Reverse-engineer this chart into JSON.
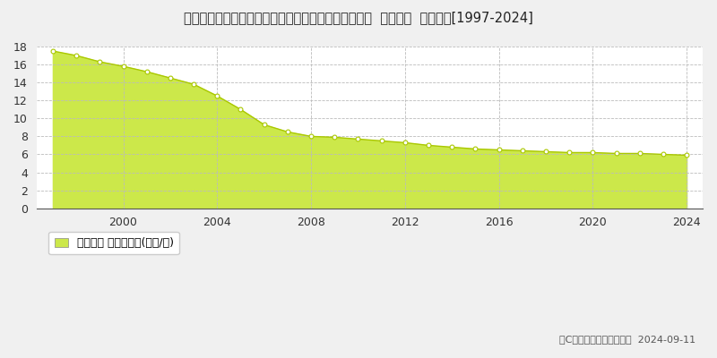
{
  "title": "埼玉県比企郡鸩山町大字大豆戸字七反田上２７９番２  地価公示  地価推移[1997-2024]",
  "years": [
    1997,
    1998,
    1999,
    2000,
    2001,
    2002,
    2003,
    2004,
    2005,
    2006,
    2007,
    2008,
    2009,
    2010,
    2011,
    2012,
    2013,
    2014,
    2015,
    2016,
    2017,
    2018,
    2019,
    2020,
    2021,
    2022,
    2023,
    2024
  ],
  "values": [
    17.5,
    17.0,
    16.3,
    15.8,
    15.2,
    14.5,
    13.8,
    12.5,
    11.0,
    9.3,
    8.5,
    8.0,
    7.9,
    7.7,
    7.5,
    7.3,
    7.0,
    6.8,
    6.6,
    6.5,
    6.4,
    6.3,
    6.2,
    6.2,
    6.1,
    6.1,
    6.0,
    5.9
  ],
  "fill_color": "#cce84a",
  "line_color": "#aac800",
  "marker_color": "#ffffff",
  "marker_edge_color": "#aac800",
  "bg_color": "#f0f0f0",
  "plot_bg_color": "#ffffff",
  "grid_color": "#bbbbbb",
  "ylim": [
    0,
    18
  ],
  "yticks": [
    0,
    2,
    4,
    6,
    8,
    10,
    12,
    14,
    16,
    18
  ],
  "xticks": [
    2000,
    2004,
    2008,
    2012,
    2016,
    2020,
    2024
  ],
  "legend_label": "地価公示 平均坊単価(万円/坊)",
  "legend_marker_color": "#cce84a",
  "copyright_text": "（C）土地価格ドットコム  2024-09-11",
  "title_fontsize": 10.5,
  "tick_fontsize": 9,
  "legend_fontsize": 9
}
